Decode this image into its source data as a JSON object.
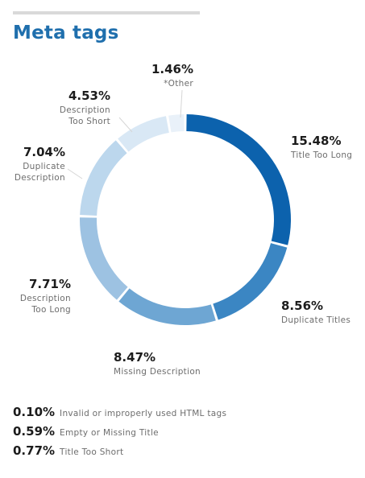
{
  "header": {
    "title": "Meta tags"
  },
  "chart_data": {
    "type": "pie",
    "categories": [
      "Title Too Long",
      "Duplicate Titles",
      "Missing Description",
      "Description Too Long",
      "Duplicate Description",
      "Description Too Short",
      "*Other"
    ],
    "values": [
      15.48,
      8.56,
      8.47,
      7.71,
      7.04,
      4.53,
      1.46
    ],
    "value_labels": [
      "15.48%",
      "8.56%",
      "8.47%",
      "7.71%",
      "7.04%",
      "4.53%",
      "1.46%"
    ],
    "label_lines": [
      [
        "Title Too Long"
      ],
      [
        "Duplicate Titles"
      ],
      [
        "Missing Description"
      ],
      [
        "Description",
        "Too Long"
      ],
      [
        "Duplicate",
        "Description"
      ],
      [
        "Description",
        "Too Short"
      ],
      [
        "*Other"
      ]
    ],
    "colors": [
      "#0c62ad",
      "#3b86c3",
      "#6ea6d3",
      "#9dc2e2",
      "#bcd7ed",
      "#d9e8f5",
      "#e9f1f9"
    ],
    "donut": true,
    "legend": "none"
  },
  "extras": [
    {
      "value": "0.10%",
      "label": "Invalid or improperly used HTML tags"
    },
    {
      "value": "0.59%",
      "label": "Empty or Missing Title"
    },
    {
      "value": "0.77%",
      "label": "Title Too Short"
    }
  ]
}
